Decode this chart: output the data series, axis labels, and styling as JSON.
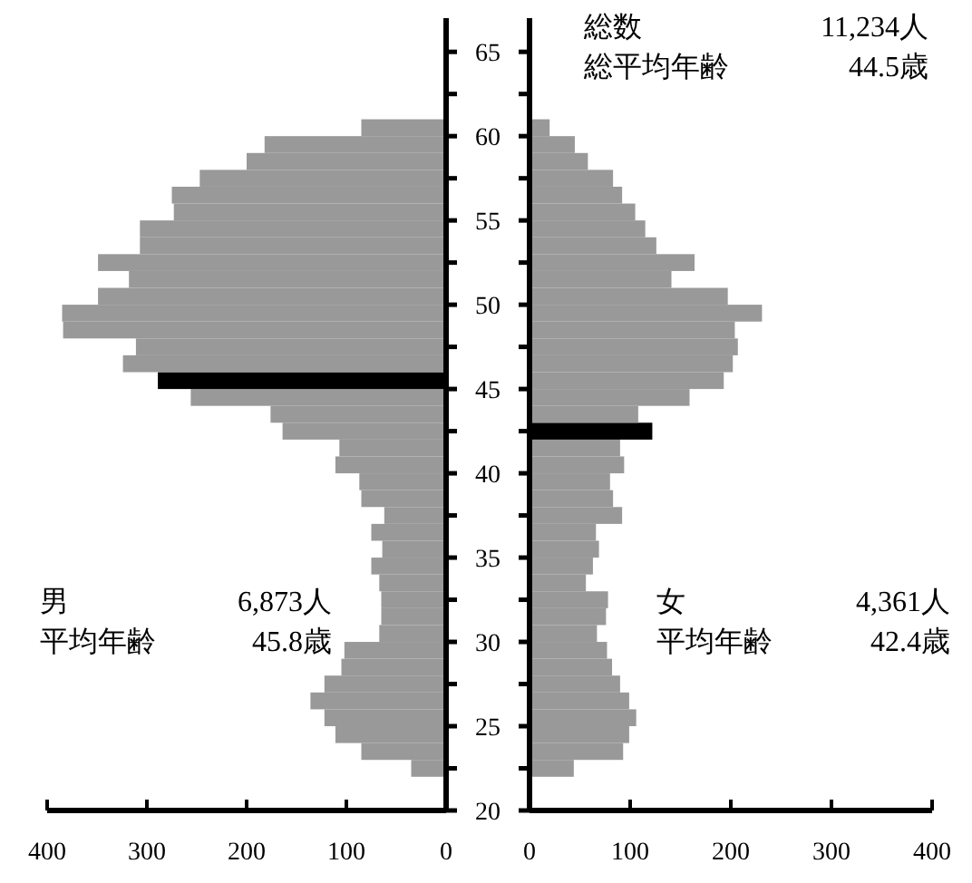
{
  "chart_data": [
    {
      "type": "bar",
      "orientation": "horizontal",
      "tick_labels": "x",
      "x": [
        22.5,
        23.5,
        24.5,
        25.5,
        26.5,
        27.5,
        28.5,
        29.5,
        30.5,
        31.5,
        32.5,
        33.5,
        34.5,
        35.5,
        36.5,
        37.5,
        38.5,
        39.5,
        40.5,
        41.5,
        42.5,
        43.5,
        44.5,
        45.5,
        46.5,
        47.5,
        48.5,
        49.5,
        50.5,
        51.5,
        52.5,
        53.5,
        54.5,
        55.5,
        56.5,
        57.5,
        58.5,
        59.5,
        60.5
      ],
      "values": [
        35,
        85,
        111,
        122,
        136,
        122,
        105,
        102,
        67,
        65,
        65,
        67,
        75,
        64,
        75,
        62,
        85,
        87,
        111,
        107,
        164,
        176,
        256,
        289,
        324,
        311,
        384,
        385,
        349,
        318,
        349,
        307,
        307,
        273,
        275,
        247,
        200,
        182,
        85
      ],
      "colors": [
        "#999999",
        "#999999",
        "#999999",
        "#999999",
        "#999999",
        "#999999",
        "#999999",
        "#999999",
        "#999999",
        "#999999",
        "#999999",
        "#999999",
        "#999999",
        "#999999",
        "#999999",
        "#999999",
        "#999999",
        "#999999",
        "#999999",
        "#999999",
        "#999999",
        "#999999",
        "#999999",
        "#000000",
        "#999999",
        "#999999",
        "#999999",
        "#999999",
        "#999999",
        "#999999",
        "#999999",
        "#999999",
        "#999999",
        "#999999",
        "#999999",
        "#999999",
        "#999999",
        "#999999",
        "#999999"
      ],
      "xlim": [
        400,
        0
      ],
      "xticks": [
        400,
        300,
        200,
        100,
        0
      ],
      "ylim": [
        20,
        67
      ],
      "yticks": [
        20,
        {
          "value": 22.5,
          "label": null
        },
        25,
        {
          "value": 27.5,
          "label": null
        },
        30,
        {
          "value": 32.5,
          "label": null
        },
        35,
        {
          "value": 37.5,
          "label": null
        },
        40,
        {
          "value": 42.5,
          "label": null
        },
        45,
        {
          "value": 47.5,
          "label": null
        },
        50,
        {
          "value": 52.5,
          "label": null
        },
        55,
        {
          "value": 57.5,
          "label": null
        },
        60,
        {
          "value": 62.5,
          "label": null
        },
        65
      ],
      "annotations": [
        "男",
        "6,873人",
        "平均年齢",
        "45.8歳"
      ]
    },
    {
      "type": "bar",
      "orientation": "horizontal",
      "x": [
        22.5,
        23.5,
        24.5,
        25.5,
        26.5,
        27.5,
        28.5,
        29.5,
        30.5,
        31.5,
        32.5,
        33.5,
        34.5,
        35.5,
        36.5,
        37.5,
        38.5,
        39.5,
        40.5,
        41.5,
        42.5,
        43.5,
        44.5,
        45.5,
        46.5,
        47.5,
        48.5,
        49.5,
        50.5,
        51.5,
        52.5,
        53.5,
        54.5,
        55.5,
        56.5,
        57.5,
        58.5,
        59.5,
        60.5
      ],
      "values": [
        44,
        93,
        99,
        106,
        99,
        90,
        82,
        77,
        67,
        76,
        78,
        56,
        63,
        69,
        66,
        92,
        83,
        80,
        94,
        90,
        122,
        108,
        159,
        193,
        202,
        207,
        204,
        231,
        197,
        141,
        164,
        126,
        115,
        105,
        92,
        83,
        58,
        45,
        20
      ],
      "colors": [
        "#999999",
        "#999999",
        "#999999",
        "#999999",
        "#999999",
        "#999999",
        "#999999",
        "#999999",
        "#999999",
        "#999999",
        "#999999",
        "#999999",
        "#999999",
        "#999999",
        "#999999",
        "#999999",
        "#999999",
        "#999999",
        "#999999",
        "#999999",
        "#000000",
        "#999999",
        "#999999",
        "#999999",
        "#999999",
        "#999999",
        "#999999",
        "#999999",
        "#999999",
        "#999999",
        "#999999",
        "#999999",
        "#999999",
        "#999999",
        "#999999",
        "#999999",
        "#999999",
        "#999999",
        "#999999"
      ],
      "xlim": [
        0,
        400
      ],
      "xticks": [
        0,
        100,
        200,
        300,
        400
      ],
      "ylim": [
        20,
        67
      ],
      "yticks": [
        20,
        {
          "value": 22.5,
          "label": null
        },
        25,
        {
          "value": 27.5,
          "label": null
        },
        30,
        {
          "value": 32.5,
          "label": null
        },
        35,
        {
          "value": 37.5,
          "label": null
        },
        40,
        {
          "value": 42.5,
          "label": null
        },
        45,
        {
          "value": 47.5,
          "label": null
        },
        50,
        {
          "value": 52.5,
          "label": null
        },
        55,
        {
          "value": 57.5,
          "label": null
        },
        60,
        {
          "value": 62.5,
          "label": null
        },
        65
      ],
      "annotations": [
        "総数",
        "11,234人",
        "総平均年齢",
        "44.5歳",
        "女",
        "4,361人",
        "平均年齢",
        "42.4歳"
      ]
    }
  ]
}
